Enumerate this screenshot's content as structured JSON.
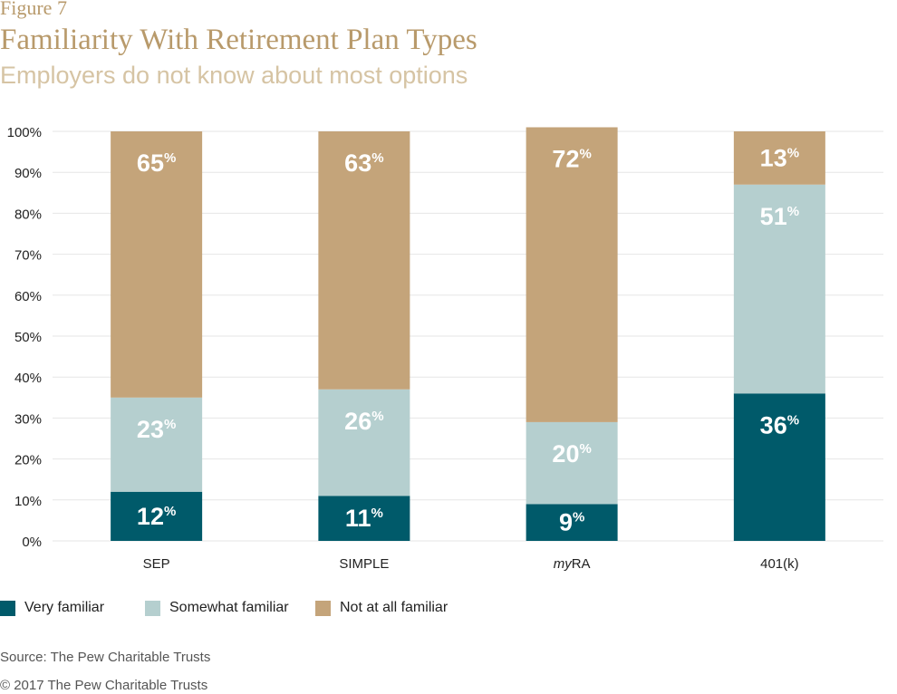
{
  "header": {
    "figure_label": "Figure 7",
    "title": "Familiarity With Retirement Plan Types",
    "subtitle": "Employers do not know about most options"
  },
  "footer": {
    "source": "Source: The Pew Charitable Trusts",
    "copyright": "© 2017 The Pew Charitable Trusts"
  },
  "colors": {
    "very": "#005a6a",
    "somewhat": "#b5cfcf",
    "not_at_all": "#c4a47a",
    "grid": "#e6e6e6"
  },
  "chart_data": {
    "type": "bar",
    "stacked": true,
    "title": "Familiarity With Retirement Plan Types",
    "subtitle": "Employers do not know about most options",
    "categories": [
      {
        "label": "SEP",
        "italic_prefix": ""
      },
      {
        "label": "SIMPLE",
        "italic_prefix": ""
      },
      {
        "label": "RA",
        "italic_prefix": "my"
      },
      {
        "label": "401(k)",
        "italic_prefix": ""
      }
    ],
    "series": [
      {
        "name": "Very familiar",
        "values": [
          12,
          11,
          9,
          36
        ]
      },
      {
        "name": "Somewhat familiar",
        "values": [
          23,
          26,
          20,
          51
        ]
      },
      {
        "name": "Not at all familiar",
        "values": [
          65,
          63,
          72,
          13
        ]
      }
    ],
    "y_ticks": [
      "0%",
      "10%",
      "20%",
      "30%",
      "40%",
      "50%",
      "60%",
      "70%",
      "80%",
      "90%",
      "100%"
    ],
    "ylim": [
      0,
      100
    ],
    "grid": true,
    "legend_position": "bottom-left",
    "value_suffix": "%"
  }
}
